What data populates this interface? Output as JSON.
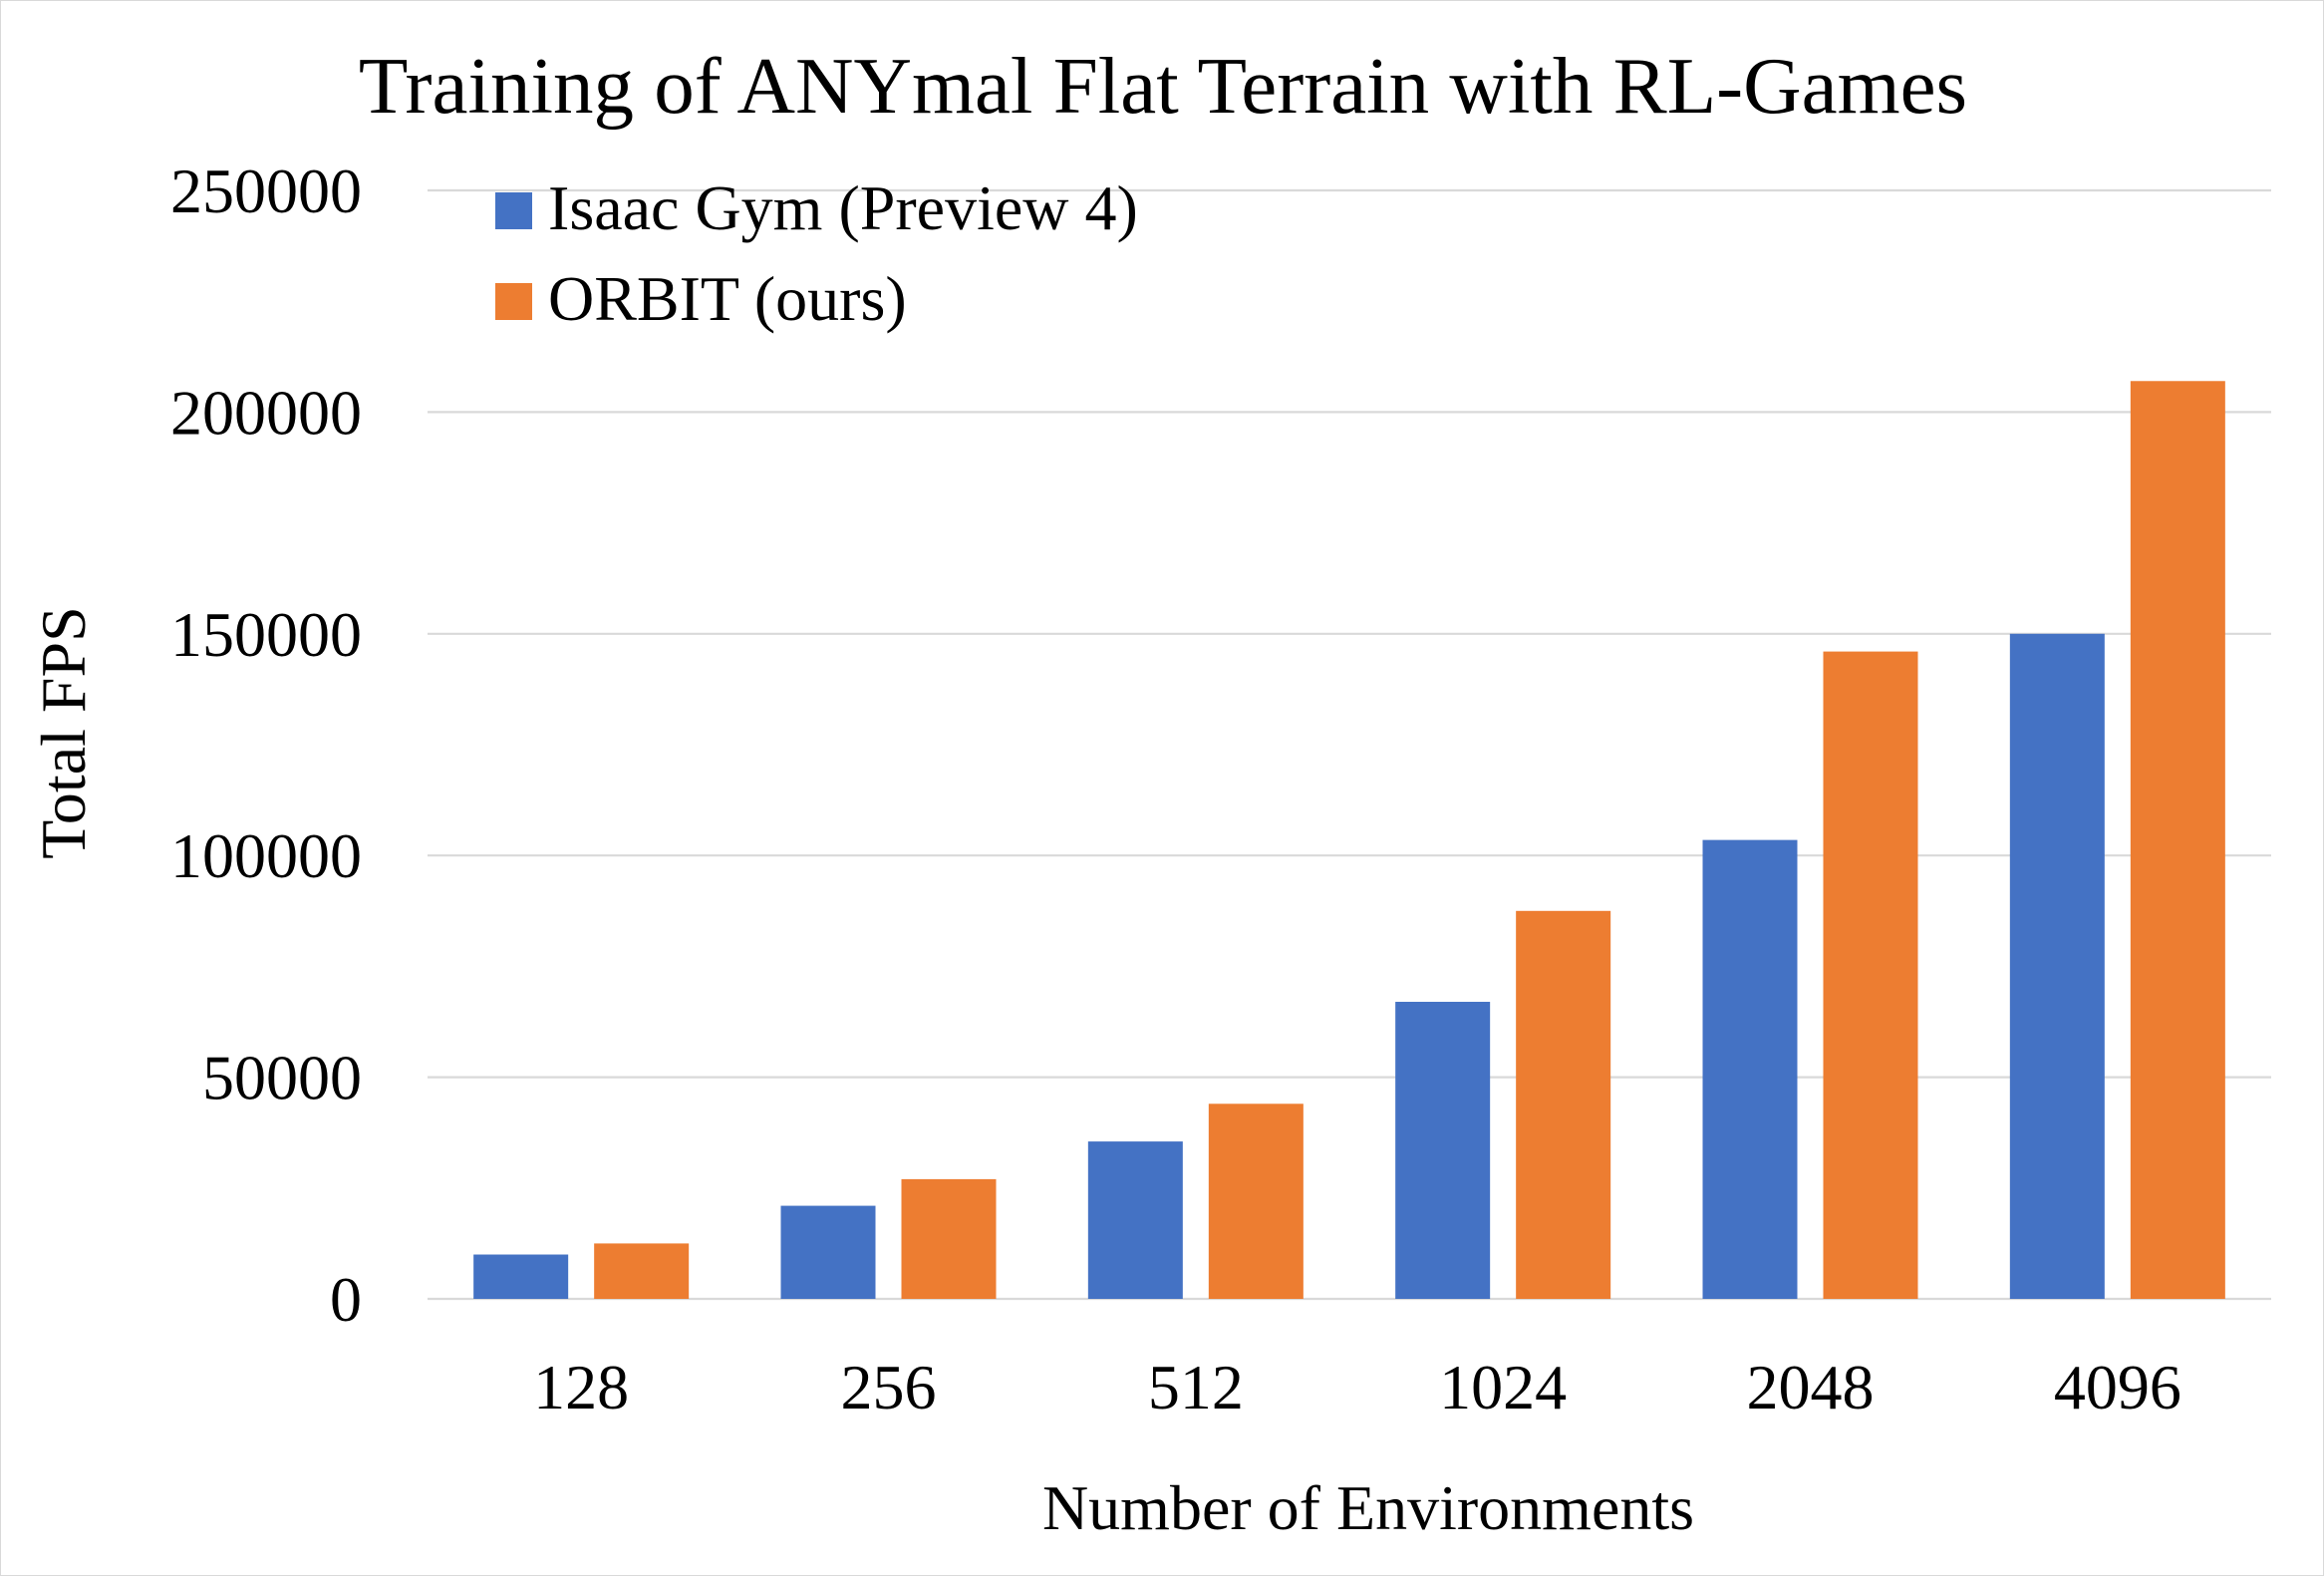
{
  "chart_data": {
    "type": "bar",
    "title": "Training of ANYmal Flat Terrain with RL-Games",
    "xlabel": "Number of Environments",
    "ylabel": "Total FPS",
    "categories": [
      "128",
      "256",
      "512",
      "1024",
      "2048",
      "4096"
    ],
    "series": [
      {
        "name": "Isaac Gym (Preview 4)",
        "color": "#4472c4",
        "values": [
          10000,
          21000,
          35500,
          67000,
          103500,
          150000
        ]
      },
      {
        "name": "ORBIT (ours)",
        "color": "#ed7d31",
        "values": [
          12500,
          27000,
          44000,
          87500,
          146000,
          207000
        ]
      }
    ],
    "ylim": [
      0,
      250000
    ],
    "yticks": [
      "0",
      "50000",
      "100000",
      "150000",
      "200000",
      "250000"
    ],
    "grid": true,
    "legend_position": "top-left"
  }
}
